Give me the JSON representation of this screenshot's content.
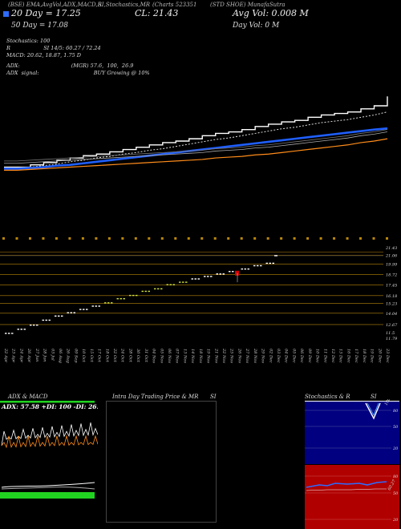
{
  "header": {
    "links": "(BSE) EMA,AvgVol,ADX,MACD,R",
    "stoch_link": "SI,Stochastics,MR",
    "charts_label": "(Charts 523351",
    "mid_label": "(STD SHOE) MunafaSutra",
    "close_label": "CL: 21.43",
    "avg_vol": "Avg Vol: 0.008  M",
    "day_vol": "Day Vol: 0   M",
    "ema20": "20  Day = 17.25",
    "ema50": "50  Day = 17.08",
    "stoch": "Stochastics: 100",
    "rsi_line": "R                    SI 14/5: 60.27 / 72.24",
    "macd": "MACD: 20.62,  18.87,  1.75  D",
    "adx_line": "ADX:                               (MGR) 57.6,  100,  26.9",
    "adx_signal": "ADX  signal:                                 BUY Growing @ 10%"
  },
  "colors": {
    "bg": "#000000",
    "price": "#ffffff",
    "ema_fast": "#1f5fff",
    "ema_slow": "#ff8c1a",
    "volume_bar": "#b8860b",
    "green": "#21d321",
    "red": "#d40000",
    "stoch_bg": "#000080"
  },
  "chart_data": [
    {
      "type": "line",
      "name": "price_chart",
      "x": [
        1,
        2,
        3,
        4,
        5,
        6,
        7,
        8,
        9,
        10,
        11,
        12,
        13,
        14,
        15,
        16,
        17,
        18,
        19,
        20,
        21,
        22,
        23,
        24,
        25,
        26,
        27,
        28,
        29,
        30
      ],
      "series": [
        {
          "values": [
            12.2,
            12.2,
            12.5,
            12.8,
            13.1,
            13.4,
            13.7,
            13.9,
            14.2,
            14.5,
            14.8,
            15.1,
            15.4,
            15.6,
            15.9,
            16.3,
            16.6,
            16.8,
            17.1,
            17.5,
            17.8,
            18.1,
            18.3,
            18.7,
            19.0,
            19.2,
            19.4,
            19.8,
            20.2,
            21.43
          ]
        },
        {
          "values": [
            12.0,
            12.0,
            12.2,
            12.4,
            12.6,
            12.9,
            13.1,
            13.4,
            13.6,
            13.9,
            14.1,
            14.4,
            14.6,
            14.9,
            15.2,
            15.5,
            15.8,
            16.0,
            16.3,
            16.6,
            16.9,
            17.2,
            17.4,
            17.7,
            18.0,
            18.2,
            18.4,
            18.7,
            19.0,
            19.4
          ]
        },
        {
          "values": [
            12.0,
            12.0,
            12.1,
            12.2,
            12.4,
            12.5,
            12.7,
            12.9,
            13.1,
            13.3,
            13.5,
            13.7,
            13.9,
            14.1,
            14.3,
            14.5,
            14.7,
            14.9,
            15.1,
            15.3,
            15.5,
            15.7,
            15.9,
            16.1,
            16.3,
            16.5,
            16.7,
            16.9,
            17.1,
            17.25
          ]
        },
        {
          "values": [
            11.8,
            11.8,
            11.9,
            12.0,
            12.1,
            12.2,
            12.3,
            12.4,
            12.5,
            12.6,
            12.7,
            12.8,
            12.9,
            13.0,
            13.1,
            13.2,
            13.4,
            13.5,
            13.6,
            13.8,
            13.9,
            14.1,
            14.3,
            14.5,
            14.7,
            14.9,
            15.1,
            15.4,
            15.6,
            15.9
          ]
        }
      ]
    },
    {
      "type": "bar",
      "name": "support_resistance",
      "levels": [
        "21.43",
        "21.06",
        "19.99",
        "18.72",
        "17.45",
        "16.18",
        "15.23",
        "14.04",
        "12.67",
        "11.5",
        "11.79"
      ],
      "level_values": [
        21.43,
        21.06,
        19.99,
        18.72,
        17.45,
        16.18,
        15.23,
        14.04,
        12.67,
        11.5,
        11.79
      ],
      "dates": [
        "22 Apr",
        "23 Apr",
        "24 Apr",
        "26 Apr",
        "27 Jun",
        "28 Jun",
        "03 Jul",
        "06 Aug",
        "26 Aug",
        "09 Sep",
        "10 Oct",
        "15 Oct",
        "17 Oct",
        "18 Oct",
        "22 Oct",
        "24 Oct",
        "28 Oct",
        "30 Oct",
        "31 Oct",
        "04 Nov",
        "05 Nov",
        "06 Nov",
        "07 Nov",
        "13 Nov",
        "14 Nov",
        "18 Nov",
        "19 Nov",
        "21 Nov",
        "22 Nov",
        "25 Nov",
        "26 Nov",
        "27 Nov",
        "28 Nov",
        "29 Nov",
        "02 Dec",
        "03 Dec",
        "04 Dec",
        "05 Dec",
        "06 Dec",
        "09 Dec",
        "10 Dec",
        "11 Dec",
        "12 Dec",
        "13 Dec",
        "16 Dec",
        "17 Dec",
        "18 Dec",
        "19 Dec",
        "20 Dec",
        "23 Dec"
      ]
    }
  ],
  "panels": {
    "adx": {
      "title": "ADX  & MACD",
      "values": "ADX: 57.58  +DI: 100  -DI: 26.92"
    },
    "intraday": {
      "title": "Intra  Day Trading Price  & MR",
      "title2": "SI"
    },
    "stoch": {
      "title": "Stochastics & R",
      "title2": "SI",
      "ticks": [
        "80",
        "50",
        "20"
      ],
      "rsi_ticks": [
        "80",
        "50",
        "20"
      ],
      "label": "100",
      "rsi_label": "60.27"
    }
  }
}
